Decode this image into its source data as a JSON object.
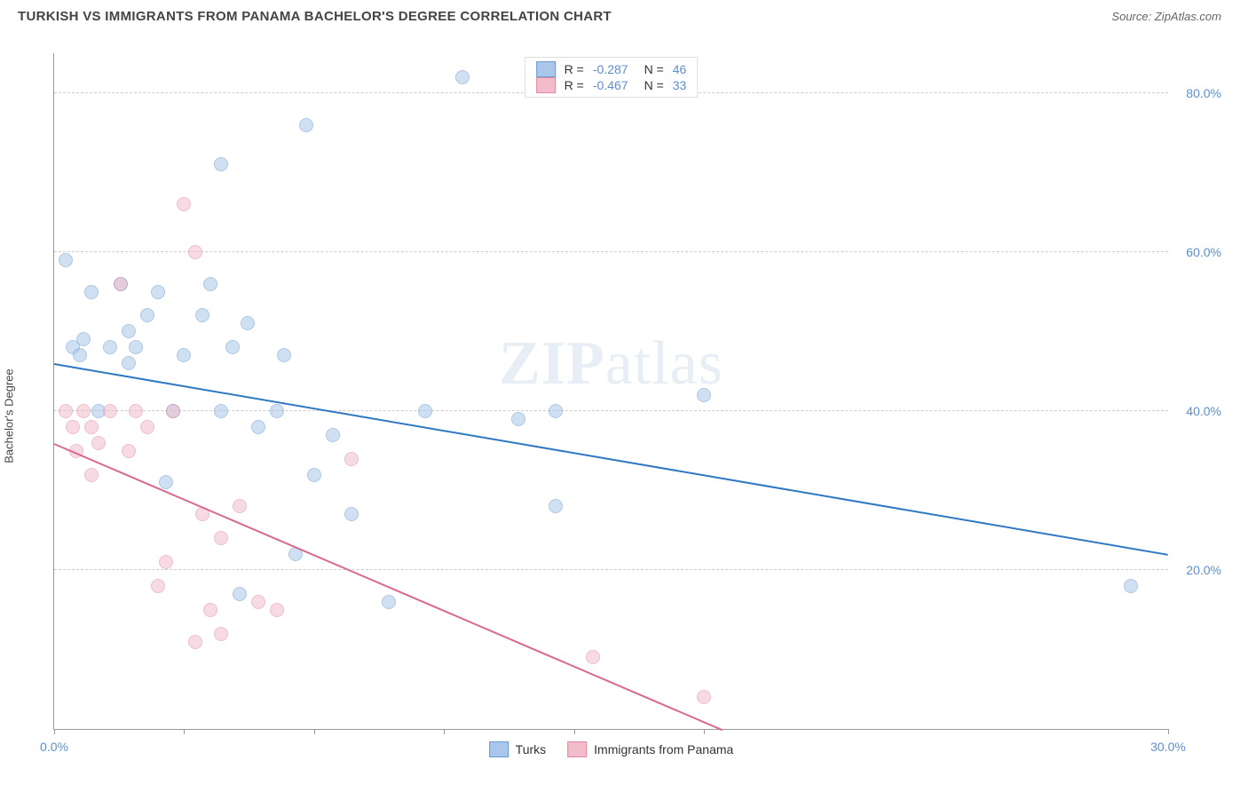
{
  "header": {
    "title": "TURKISH VS IMMIGRANTS FROM PANAMA BACHELOR'S DEGREE CORRELATION CHART",
    "source_label": "Source:",
    "source_name": "ZipAtlas.com"
  },
  "watermark": {
    "part1": "ZIP",
    "part2": "atlas"
  },
  "chart": {
    "type": "scatter",
    "ylabel": "Bachelor's Degree",
    "xlim": [
      0,
      30
    ],
    "ylim": [
      0,
      85
    ],
    "ytick_positions": [
      20,
      40,
      60,
      80
    ],
    "ytick_labels": [
      "20.0%",
      "40.0%",
      "60.0%",
      "80.0%"
    ],
    "xtick_positions": [
      0,
      3.5,
      7,
      10.5,
      14,
      17.5,
      30
    ],
    "xtick_labels_shown": {
      "0": "0.0%",
      "30": "30.0%"
    },
    "background_color": "#ffffff",
    "grid_color": "#cccccc",
    "axis_color": "#999999",
    "tick_label_color": "#5a8fd6",
    "point_radius": 8,
    "point_opacity": 0.55,
    "series": [
      {
        "name": "Turks",
        "color_fill": "#a9c7ea",
        "color_stroke": "#6b9bd1",
        "trend_color": "#2f78c4",
        "R": "-0.287",
        "N": "46",
        "trend_start": [
          0,
          46
        ],
        "trend_end": [
          30,
          22
        ],
        "points": [
          [
            0.3,
            59
          ],
          [
            0.5,
            48
          ],
          [
            0.7,
            47
          ],
          [
            0.8,
            49
          ],
          [
            1.0,
            55
          ],
          [
            1.2,
            40
          ],
          [
            1.5,
            48
          ],
          [
            1.8,
            56
          ],
          [
            2.0,
            50
          ],
          [
            2.0,
            46
          ],
          [
            2.2,
            48
          ],
          [
            2.5,
            52
          ],
          [
            2.8,
            55
          ],
          [
            3.0,
            31
          ],
          [
            3.2,
            40
          ],
          [
            3.5,
            47
          ],
          [
            4.0,
            52
          ],
          [
            4.2,
            56
          ],
          [
            4.5,
            71
          ],
          [
            4.5,
            40
          ],
          [
            4.8,
            48
          ],
          [
            5.0,
            17
          ],
          [
            5.2,
            51
          ],
          [
            5.5,
            38
          ],
          [
            6.0,
            40
          ],
          [
            6.2,
            47
          ],
          [
            6.5,
            22
          ],
          [
            6.8,
            76
          ],
          [
            7.0,
            32
          ],
          [
            7.5,
            37
          ],
          [
            8.0,
            27
          ],
          [
            9.0,
            16
          ],
          [
            10.0,
            40
          ],
          [
            11.0,
            82
          ],
          [
            12.5,
            39
          ],
          [
            13.5,
            28
          ],
          [
            13.5,
            40
          ],
          [
            17.5,
            42
          ],
          [
            29.0,
            18
          ]
        ]
      },
      {
        "name": "Immigrants from Panama",
        "color_fill": "#f4bccb",
        "color_stroke": "#e08aa3",
        "trend_color": "#d96a8e",
        "R": "-0.467",
        "N": "33",
        "trend_start": [
          0,
          36
        ],
        "trend_end": [
          18,
          0
        ],
        "points": [
          [
            0.3,
            40
          ],
          [
            0.5,
            38
          ],
          [
            0.6,
            35
          ],
          [
            0.8,
            40
          ],
          [
            1.0,
            32
          ],
          [
            1.0,
            38
          ],
          [
            1.2,
            36
          ],
          [
            1.5,
            40
          ],
          [
            1.8,
            56
          ],
          [
            2.0,
            35
          ],
          [
            2.2,
            40
          ],
          [
            2.5,
            38
          ],
          [
            2.8,
            18
          ],
          [
            3.0,
            21
          ],
          [
            3.2,
            40
          ],
          [
            3.5,
            66
          ],
          [
            3.8,
            11
          ],
          [
            3.8,
            60
          ],
          [
            4.0,
            27
          ],
          [
            4.2,
            15
          ],
          [
            4.5,
            12
          ],
          [
            4.5,
            24
          ],
          [
            5.0,
            28
          ],
          [
            5.5,
            16
          ],
          [
            6.0,
            15
          ],
          [
            8.0,
            34
          ],
          [
            14.5,
            9
          ],
          [
            17.5,
            4
          ]
        ]
      }
    ],
    "legend_top": [
      {
        "series_index": 0,
        "r_label": "R =",
        "n_label": "N ="
      },
      {
        "series_index": 1,
        "r_label": "R =",
        "n_label": "N ="
      }
    ],
    "legend_bottom_labels": [
      "Turks",
      "Immigrants from Panama"
    ]
  }
}
